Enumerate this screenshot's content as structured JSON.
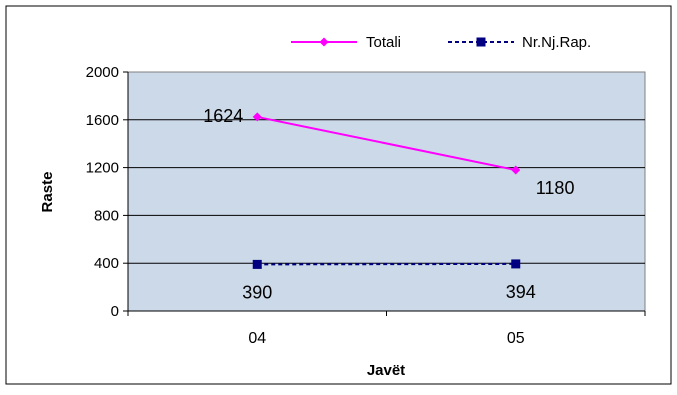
{
  "chart_data": {
    "type": "line",
    "categories": [
      "04",
      "05"
    ],
    "series": [
      {
        "name": "Totali",
        "values": [
          1624,
          1180
        ],
        "color": "#ff00ff",
        "line_style": "solid",
        "marker": "diamond",
        "data_labels": [
          "1624",
          "1180"
        ]
      },
      {
        "name": "Nr.Nj.Rap.",
        "values": [
          390,
          394
        ],
        "color": "#000080",
        "line_style": "dashed",
        "marker": "square",
        "data_labels": [
          "390",
          "394"
        ]
      }
    ],
    "xlabel": "Javët",
    "ylabel": "Raste",
    "ylim": [
      0,
      2000
    ],
    "yticks": [
      0,
      400,
      800,
      1200,
      1600,
      2000
    ],
    "grid": true,
    "legend_position": "top-right",
    "plot_background": "#ccd9e8"
  }
}
